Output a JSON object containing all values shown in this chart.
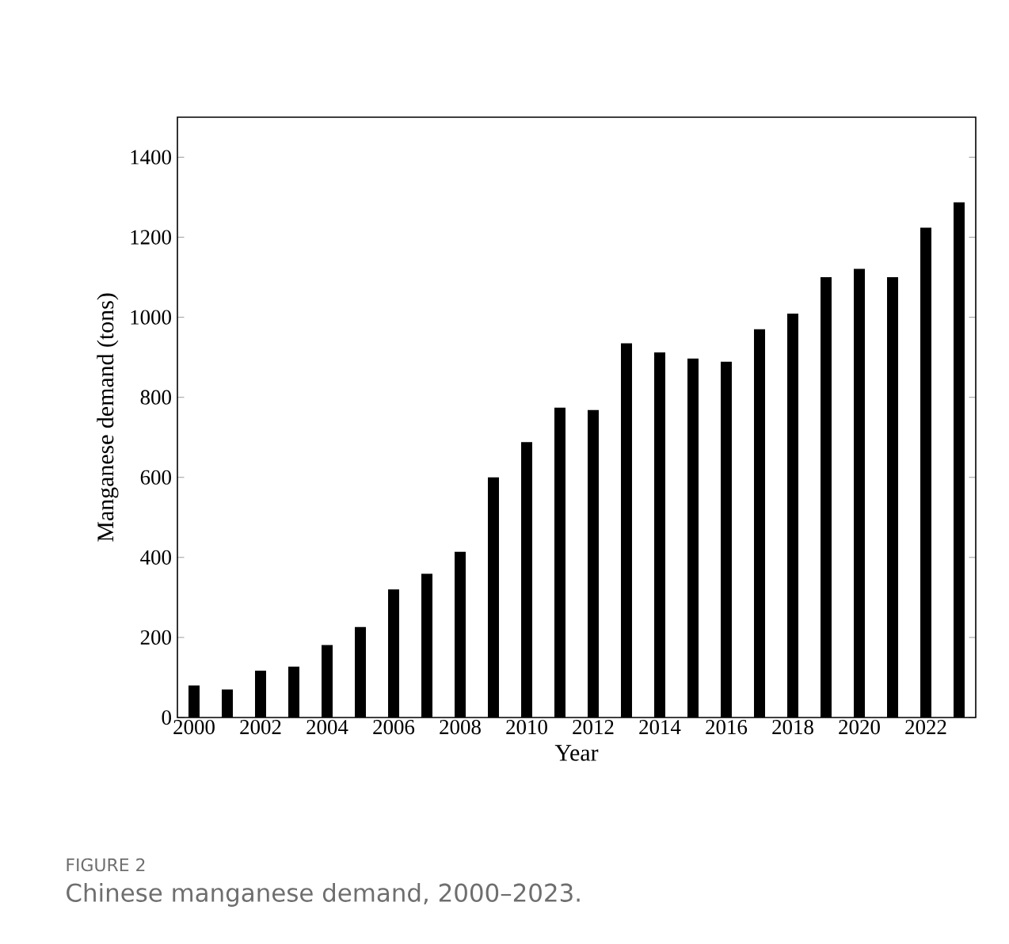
{
  "chart_data": {
    "type": "bar",
    "categories": [
      "2000",
      null,
      "2002",
      null,
      "2004",
      null,
      "2006",
      null,
      "2008",
      null,
      "2010",
      null,
      "2012",
      null,
      "2014",
      null,
      "2016",
      null,
      "2018",
      null,
      "2020",
      null,
      "2022",
      null
    ],
    "values": [
      80,
      70,
      117,
      127,
      181,
      226,
      320,
      359,
      414,
      600,
      688,
      774,
      768,
      935,
      912,
      897,
      889,
      970,
      1009,
      1100,
      1121,
      1100,
      1224,
      1287
    ],
    "color": "#000000",
    "xlabel": "Year",
    "ylabel": "Manganese demand (tons)",
    "ylim": [
      0,
      1500
    ],
    "yticks": [
      0,
      200,
      400,
      600,
      800,
      1000,
      1200,
      1400
    ],
    "annotations": [
      "FIGURE 2",
      "Chinese manganese demand, 2000–2023."
    ]
  }
}
